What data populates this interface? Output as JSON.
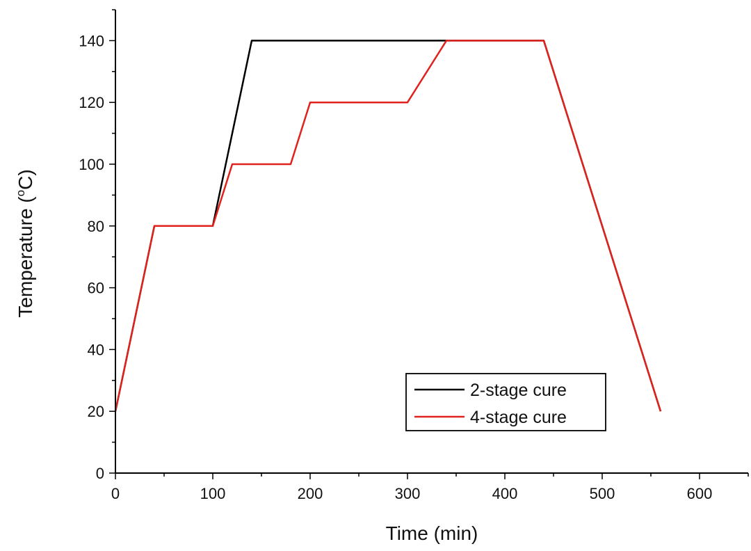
{
  "chart_data": {
    "type": "line",
    "title": "",
    "xlabel": "Time (min)",
    "ylabel": "Temperature (°C)",
    "ylabel_main": "Temperature (",
    "ylabel_sup": "o",
    "ylabel_unit": "C)",
    "xlim": [
      0,
      650
    ],
    "ylim": [
      0,
      150
    ],
    "x_ticks": [
      0,
      100,
      200,
      300,
      400,
      500,
      600
    ],
    "y_ticks": [
      0,
      20,
      40,
      60,
      80,
      100,
      120,
      140
    ],
    "x_minor_step": 50,
    "y_minor_step": 10,
    "grid": false,
    "legend_position": "lower-right",
    "series": [
      {
        "name": "2-stage cure",
        "color": "#000000",
        "x": [
          0,
          40,
          100,
          140,
          340,
          440,
          560
        ],
        "y": [
          20,
          80,
          80,
          140,
          140,
          140,
          20
        ]
      },
      {
        "name": "4-stage cure",
        "color": "#e0211c",
        "x": [
          0,
          40,
          100,
          120,
          180,
          200,
          300,
          340,
          440,
          560
        ],
        "y": [
          20,
          80,
          80,
          100,
          100,
          120,
          120,
          140,
          140,
          20
        ]
      }
    ]
  }
}
